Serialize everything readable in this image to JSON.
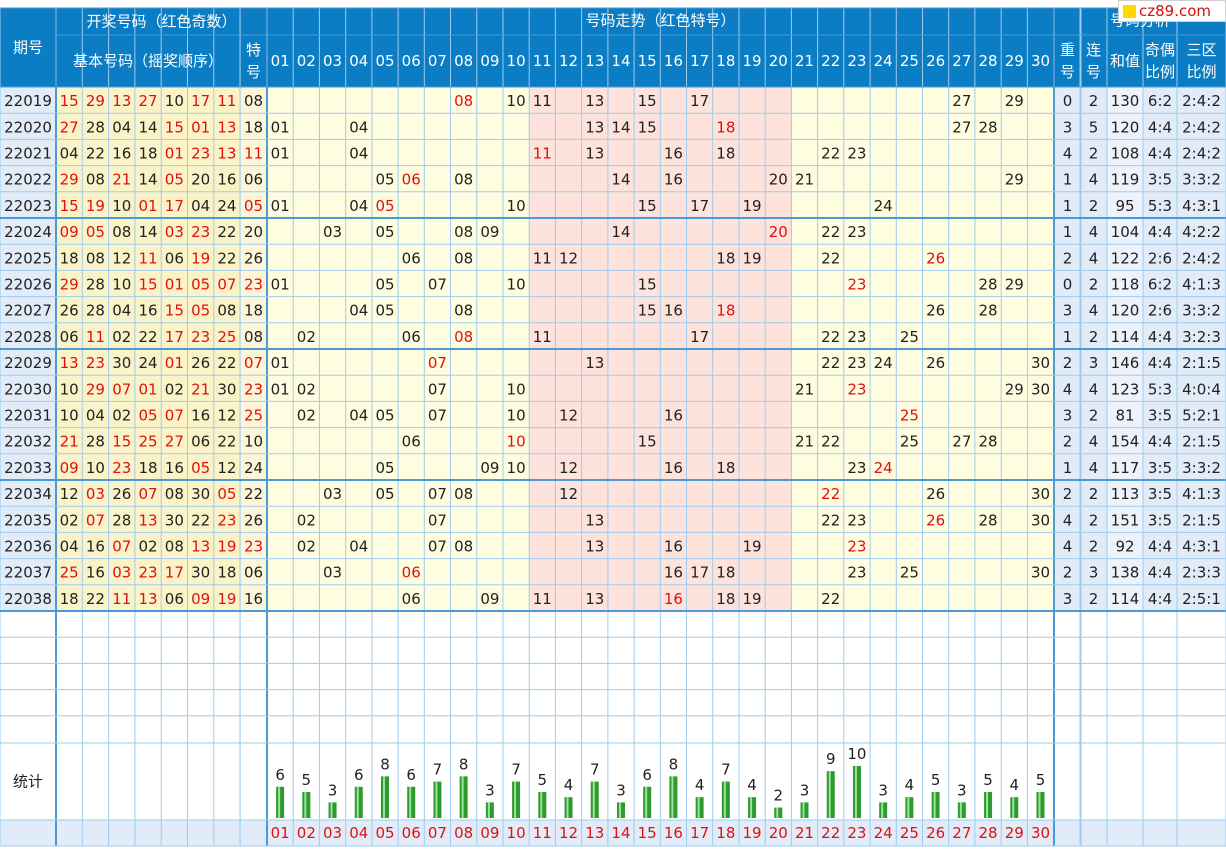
{
  "headers": {
    "period": "期号",
    "draw_group": "开奖号码（红色奇数）",
    "basic_numbers": "基本号码（摇奖顺序）",
    "special": "特号",
    "trend_group": "号码走势（红色特号）",
    "analysis_group": "号码分析",
    "repeat": "重号",
    "consecutive": "连号",
    "sum": "和值",
    "odd_even": "奇偶比例",
    "zones": "三区比例",
    "stats": "统计"
  },
  "logo_text": "cz89.com",
  "colors": {
    "header_bg": "#0b7dc4",
    "zone_bg": "#fefde0",
    "middle_zone_bg": "#fde3dc",
    "special_bg": "#fff5d0",
    "analysis_bg": "#e2ecf8",
    "grid_line": "#9ecbee",
    "red_text": "#e01010",
    "bar_green": "#2d9b2d"
  },
  "chart_data": {
    "type": "table",
    "trend_columns": [
      "01",
      "02",
      "03",
      "04",
      "05",
      "06",
      "07",
      "08",
      "09",
      "10",
      "11",
      "12",
      "13",
      "14",
      "15",
      "16",
      "17",
      "18",
      "19",
      "20",
      "21",
      "22",
      "23",
      "24",
      "25",
      "26",
      "27",
      "28",
      "29",
      "30"
    ],
    "rows": [
      {
        "period": "22019",
        "basic": [
          "15",
          "29",
          "13",
          "27",
          "10",
          "17",
          "11"
        ],
        "special": "08",
        "repeat": "0",
        "consecutive": "2",
        "sum": "130",
        "odd_even": "6:2",
        "zones": "2:4:2"
      },
      {
        "period": "22020",
        "basic": [
          "27",
          "28",
          "04",
          "14",
          "15",
          "01",
          "13"
        ],
        "special": "18",
        "repeat": "3",
        "consecutive": "5",
        "sum": "120",
        "odd_even": "4:4",
        "zones": "2:4:2"
      },
      {
        "period": "22021",
        "basic": [
          "04",
          "22",
          "16",
          "18",
          "01",
          "23",
          "13"
        ],
        "special": "11",
        "repeat": "4",
        "consecutive": "2",
        "sum": "108",
        "odd_even": "4:4",
        "zones": "2:4:2"
      },
      {
        "period": "22022",
        "basic": [
          "29",
          "08",
          "21",
          "14",
          "05",
          "20",
          "16"
        ],
        "special": "06",
        "repeat": "1",
        "consecutive": "4",
        "sum": "119",
        "odd_even": "3:5",
        "zones": "3:3:2"
      },
      {
        "period": "22023",
        "basic": [
          "15",
          "19",
          "10",
          "01",
          "17",
          "04",
          "24"
        ],
        "special": "05",
        "repeat": "1",
        "consecutive": "2",
        "sum": "95",
        "odd_even": "5:3",
        "zones": "4:3:1"
      },
      {
        "period": "22024",
        "basic": [
          "09",
          "05",
          "08",
          "14",
          "03",
          "23",
          "22"
        ],
        "special": "20",
        "repeat": "1",
        "consecutive": "4",
        "sum": "104",
        "odd_even": "4:4",
        "zones": "4:2:2"
      },
      {
        "period": "22025",
        "basic": [
          "18",
          "08",
          "12",
          "11",
          "06",
          "19",
          "22"
        ],
        "special": "26",
        "repeat": "2",
        "consecutive": "4",
        "sum": "122",
        "odd_even": "2:6",
        "zones": "2:4:2"
      },
      {
        "period": "22026",
        "basic": [
          "29",
          "28",
          "10",
          "15",
          "01",
          "05",
          "07"
        ],
        "special": "23",
        "repeat": "0",
        "consecutive": "2",
        "sum": "118",
        "odd_even": "6:2",
        "zones": "4:1:3"
      },
      {
        "period": "22027",
        "basic": [
          "26",
          "28",
          "04",
          "16",
          "15",
          "05",
          "08"
        ],
        "special": "18",
        "repeat": "3",
        "consecutive": "4",
        "sum": "120",
        "odd_even": "2:6",
        "zones": "3:3:2"
      },
      {
        "period": "22028",
        "basic": [
          "06",
          "11",
          "02",
          "22",
          "17",
          "23",
          "25"
        ],
        "special": "08",
        "repeat": "1",
        "consecutive": "2",
        "sum": "114",
        "odd_even": "4:4",
        "zones": "3:2:3"
      },
      {
        "period": "22029",
        "basic": [
          "13",
          "23",
          "30",
          "24",
          "01",
          "26",
          "22"
        ],
        "special": "07",
        "repeat": "2",
        "consecutive": "3",
        "sum": "146",
        "odd_even": "4:4",
        "zones": "2:1:5"
      },
      {
        "period": "22030",
        "basic": [
          "10",
          "29",
          "07",
          "01",
          "02",
          "21",
          "30"
        ],
        "special": "23",
        "repeat": "4",
        "consecutive": "4",
        "sum": "123",
        "odd_even": "5:3",
        "zones": "4:0:4"
      },
      {
        "period": "22031",
        "basic": [
          "10",
          "04",
          "02",
          "05",
          "07",
          "16",
          "12"
        ],
        "special": "25",
        "repeat": "3",
        "consecutive": "2",
        "sum": "81",
        "odd_even": "3:5",
        "zones": "5:2:1"
      },
      {
        "period": "22032",
        "basic": [
          "21",
          "28",
          "15",
          "25",
          "27",
          "06",
          "22"
        ],
        "special": "10",
        "repeat": "2",
        "consecutive": "4",
        "sum": "154",
        "odd_even": "4:4",
        "zones": "2:1:5"
      },
      {
        "period": "22033",
        "basic": [
          "09",
          "10",
          "23",
          "18",
          "16",
          "05",
          "12"
        ],
        "special": "24",
        "repeat": "1",
        "consecutive": "4",
        "sum": "117",
        "odd_even": "3:5",
        "zones": "3:3:2"
      },
      {
        "period": "22034",
        "basic": [
          "12",
          "03",
          "26",
          "07",
          "08",
          "30",
          "05"
        ],
        "special": "22",
        "repeat": "2",
        "consecutive": "2",
        "sum": "113",
        "odd_even": "3:5",
        "zones": "4:1:3"
      },
      {
        "period": "22035",
        "basic": [
          "02",
          "07",
          "28",
          "13",
          "30",
          "22",
          "23"
        ],
        "special": "26",
        "repeat": "4",
        "consecutive": "2",
        "sum": "151",
        "odd_even": "3:5",
        "zones": "2:1:5"
      },
      {
        "period": "22036",
        "basic": [
          "04",
          "16",
          "07",
          "02",
          "08",
          "13",
          "19"
        ],
        "special": "23",
        "repeat": "4",
        "consecutive": "2",
        "sum": "92",
        "odd_even": "4:4",
        "zones": "4:3:1"
      },
      {
        "period": "22037",
        "basic": [
          "25",
          "16",
          "03",
          "23",
          "17",
          "30",
          "18"
        ],
        "special": "06",
        "repeat": "2",
        "consecutive": "3",
        "sum": "138",
        "odd_even": "4:4",
        "zones": "2:3:3"
      },
      {
        "period": "22038",
        "basic": [
          "18",
          "22",
          "11",
          "13",
          "06",
          "09",
          "19"
        ],
        "special": "16",
        "repeat": "3",
        "consecutive": "2",
        "sum": "114",
        "odd_even": "4:4",
        "zones": "2:5:1"
      }
    ],
    "stats_counts": [
      6,
      5,
      3,
      6,
      8,
      6,
      7,
      8,
      3,
      7,
      5,
      4,
      7,
      3,
      6,
      8,
      4,
      7,
      4,
      2,
      3,
      9,
      10,
      3,
      4,
      5,
      3,
      5,
      4,
      5
    ]
  }
}
